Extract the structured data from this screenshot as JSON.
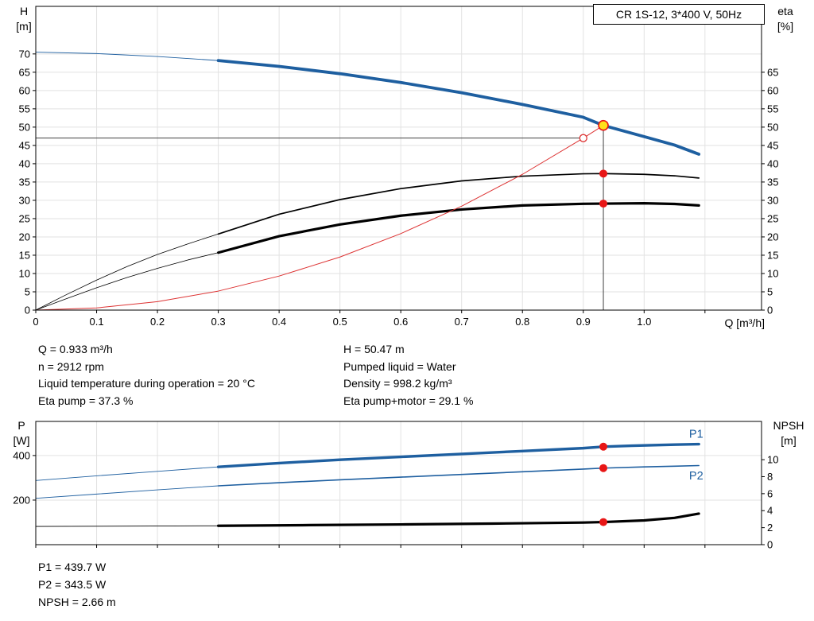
{
  "report": {
    "title": "CR 1S-12, 3*400 V, 50Hz"
  },
  "info_top": {
    "left": [
      "Q = 0.933 m³/h",
      "n = 2912 rpm",
      "Liquid temperature during operation = 20 °C",
      "Eta pump = 37.3 %"
    ],
    "right": [
      "H = 50.47 m",
      "Pumped liquid = Water",
      "Density = 998.2 kg/m³",
      "Eta pump+motor = 29.1 %"
    ]
  },
  "info_bottom": {
    "lines": [
      "P1 = 439.7 W",
      "P2 = 343.5 W",
      "NPSH = 2.66 m"
    ]
  },
  "colors": {
    "curve_blue": "#1e5fa0",
    "curve_black": "#000000",
    "system_red": "#dd3333",
    "marker_red": "#e81616",
    "duty_yellow": "#ffe11a",
    "grid": "#e2e2e2"
  },
  "chart_data": [
    {
      "type": "line",
      "title": "CR 1S-12, 3*400 V, 50Hz",
      "x_label": "Q [m³/h]",
      "y_left_label": [
        "H",
        "[m]"
      ],
      "y_right_label": [
        "eta",
        "[%]"
      ],
      "x_range": [
        0,
        1.193
      ],
      "y_left_range": [
        0,
        83
      ],
      "y_right_range": [
        0,
        83
      ],
      "x_ticks": [
        0,
        0.1,
        0.2,
        0.3,
        0.4,
        0.5,
        0.6,
        0.7,
        0.8,
        0.9,
        1.0,
        1.1
      ],
      "x_tick_labels": [
        "0",
        "0.1",
        "0.2",
        "0.3",
        "0.4",
        "0.5",
        "0.6",
        "0.7",
        "0.8",
        "0.9",
        "1.0",
        ""
      ],
      "y_left_ticks": [
        0,
        5,
        10,
        15,
        20,
        25,
        30,
        35,
        40,
        45,
        50,
        55,
        60,
        65,
        70
      ],
      "y_right_ticks": [
        0,
        5,
        10,
        15,
        20,
        25,
        30,
        35,
        40,
        45,
        50,
        55,
        60,
        65
      ],
      "grid_x_values": [
        0.1,
        0.2,
        0.3,
        0.4,
        0.5,
        0.6,
        0.7,
        0.8,
        0.9,
        1.0,
        1.1
      ],
      "grid_y_values": [
        5,
        10,
        15,
        20,
        25,
        30,
        35,
        40,
        45,
        50,
        55,
        60,
        65,
        70
      ],
      "grid_color": "#e2e2e2",
      "duty_point": {
        "Q": 0.933,
        "H": 50.47,
        "eta_pump": 37.3,
        "eta_pump_motor": 29.1
      },
      "ref_lines": [
        {
          "id": "duty-h-line",
          "orient": "h",
          "value": 47,
          "from": 0,
          "to": 0.9,
          "color": "#404040",
          "width": 1
        },
        {
          "id": "duty-v-line",
          "orient": "v",
          "value": 0.933,
          "from": 0,
          "to": 50.47,
          "color": "#404040",
          "width": 1
        }
      ],
      "series": [
        {
          "id": "h-curve-thin",
          "name": "H (low-flow extension)",
          "axis": "left",
          "color": "#1e5fa0",
          "width": 0.9,
          "points": [
            [
              0,
              70.5
            ],
            [
              0.1,
              70.1
            ],
            [
              0.2,
              69.3
            ],
            [
              0.3,
              68.2
            ]
          ]
        },
        {
          "id": "h-curve",
          "name": "H",
          "axis": "left",
          "color": "#1e5fa0",
          "width": 3.8,
          "points": [
            [
              0.3,
              68.2
            ],
            [
              0.4,
              66.6
            ],
            [
              0.5,
              64.6
            ],
            [
              0.6,
              62.2
            ],
            [
              0.7,
              59.4
            ],
            [
              0.8,
              56.2
            ],
            [
              0.9,
              52.7
            ],
            [
              0.933,
              50.47
            ],
            [
              1.0,
              47.4
            ],
            [
              1.05,
              45.1
            ],
            [
              1.09,
              42.6
            ]
          ]
        },
        {
          "id": "eta-pump-thin",
          "name": "Eta pump (low-flow extension)",
          "axis": "right",
          "color": "#000000",
          "width": 0.8,
          "points": [
            [
              0,
              0
            ],
            [
              0.05,
              4.2
            ],
            [
              0.1,
              8.2
            ],
            [
              0.15,
              11.9
            ],
            [
              0.2,
              15.2
            ],
            [
              0.25,
              18.1
            ],
            [
              0.3,
              20.8
            ]
          ]
        },
        {
          "id": "eta-pump",
          "name": "Eta pump",
          "axis": "right",
          "color": "#000000",
          "width": 1.7,
          "points": [
            [
              0.3,
              20.8
            ],
            [
              0.4,
              26.2
            ],
            [
              0.5,
              30.2
            ],
            [
              0.6,
              33.2
            ],
            [
              0.7,
              35.3
            ],
            [
              0.8,
              36.6
            ],
            [
              0.9,
              37.25
            ],
            [
              0.933,
              37.3
            ],
            [
              1.0,
              37.1
            ],
            [
              1.05,
              36.7
            ],
            [
              1.09,
              36.1
            ]
          ]
        },
        {
          "id": "eta-pump-motor-thin",
          "name": "Eta pump+motor (low-flow extension)",
          "axis": "right",
          "color": "#000000",
          "width": 0.8,
          "points": [
            [
              0,
              0
            ],
            [
              0.05,
              3.1
            ],
            [
              0.1,
              6.1
            ],
            [
              0.15,
              8.9
            ],
            [
              0.2,
              11.4
            ],
            [
              0.25,
              13.7
            ],
            [
              0.3,
              15.7
            ]
          ]
        },
        {
          "id": "eta-pump-motor",
          "name": "Eta pump+motor",
          "axis": "right",
          "color": "#000000",
          "width": 3.2,
          "points": [
            [
              0.3,
              15.7
            ],
            [
              0.4,
              20.2
            ],
            [
              0.5,
              23.4
            ],
            [
              0.6,
              25.8
            ],
            [
              0.7,
              27.5
            ],
            [
              0.8,
              28.6
            ],
            [
              0.9,
              29.05
            ],
            [
              0.933,
              29.1
            ],
            [
              1.0,
              29.2
            ],
            [
              1.05,
              29.0
            ],
            [
              1.09,
              28.6
            ]
          ]
        },
        {
          "id": "system-curve",
          "name": "System curve",
          "axis": "left",
          "color": "#dd3333",
          "width": 1,
          "points": [
            [
              0,
              0
            ],
            [
              0.1,
              0.6
            ],
            [
              0.2,
              2.3
            ],
            [
              0.3,
              5.2
            ],
            [
              0.4,
              9.3
            ],
            [
              0.5,
              14.5
            ],
            [
              0.6,
              20.9
            ],
            [
              0.7,
              28.4
            ],
            [
              0.8,
              37.1
            ],
            [
              0.9,
              47.0
            ],
            [
              0.933,
              50.47
            ]
          ]
        }
      ],
      "markers": [
        {
          "id": "requested-duty-marker",
          "x": 0.9,
          "y": 47,
          "axis": "left",
          "r": 4.5,
          "fill": "#ffffff",
          "stroke": "#dd3333",
          "stroke_width": 1.3
        },
        {
          "id": "eta-pump-duty-dot",
          "x": 0.933,
          "y": 37.3,
          "axis": "right",
          "r": 5,
          "fill": "#e81616"
        },
        {
          "id": "eta-pump-motor-duty-dot",
          "x": 0.933,
          "y": 29.1,
          "axis": "right",
          "r": 5,
          "fill": "#e81616"
        },
        {
          "id": "duty-point-marker",
          "x": 0.933,
          "y": 50.47,
          "axis": "left",
          "r": 6,
          "fill": "#ffe11a",
          "stroke": "#e81616",
          "stroke_width": 1.6
        }
      ],
      "annotations": []
    },
    {
      "type": "line",
      "y_left_label": [
        "P",
        "[W]"
      ],
      "y_right_label": [
        "NPSH",
        "[m]"
      ],
      "x_range": [
        0,
        1.193
      ],
      "y_left_range": [
        0,
        553
      ],
      "y_right_range": [
        0,
        14.5
      ],
      "x_ticks": [
        0,
        0.1,
        0.2,
        0.3,
        0.4,
        0.5,
        0.6,
        0.7,
        0.8,
        0.9,
        1.0,
        1.1
      ],
      "x_tick_labels": [],
      "y_left_ticks": [
        200,
        400
      ],
      "y_right_ticks": [
        0,
        2,
        4,
        6,
        8,
        10
      ],
      "grid_x_values": [
        0.1,
        0.2,
        0.3,
        0.4,
        0.5,
        0.6,
        0.7,
        0.8,
        0.9,
        1.0,
        1.1
      ],
      "grid_y_values": [
        200,
        400
      ],
      "grid_color": "#e2e2e2",
      "duty_point": {
        "Q": 0.933,
        "P1": 439.7,
        "P2": 343.5,
        "NPSH": 2.66
      },
      "ref_lines": [],
      "series": [
        {
          "id": "p1-curve-thin",
          "name": "P1 (low-flow extension)",
          "axis": "left",
          "color": "#1e5fa0",
          "width": 0.9,
          "points": [
            [
              0,
              288
            ],
            [
              0.1,
              309
            ],
            [
              0.2,
              329
            ],
            [
              0.3,
              349
            ]
          ]
        },
        {
          "id": "p1-curve",
          "name": "P1",
          "axis": "left",
          "color": "#1e5fa0",
          "width": 3.4,
          "points": [
            [
              0.3,
              349
            ],
            [
              0.4,
              366
            ],
            [
              0.5,
              381
            ],
            [
              0.6,
              394
            ],
            [
              0.7,
              407
            ],
            [
              0.8,
              420
            ],
            [
              0.9,
              433
            ],
            [
              0.933,
              439.7
            ],
            [
              0.98,
              444
            ],
            [
              1.05,
              449
            ],
            [
              1.09,
              451
            ]
          ]
        },
        {
          "id": "p2-curve-thin",
          "name": "P2 (low-flow extension)",
          "axis": "left",
          "color": "#1e5fa0",
          "width": 0.9,
          "points": [
            [
              0,
              208
            ],
            [
              0.1,
              227
            ],
            [
              0.2,
              246
            ],
            [
              0.3,
              264
            ]
          ]
        },
        {
          "id": "p2-curve",
          "name": "P2",
          "axis": "left",
          "color": "#1e5fa0",
          "width": 1.6,
          "points": [
            [
              0.3,
              264
            ],
            [
              0.4,
              278
            ],
            [
              0.5,
              291
            ],
            [
              0.6,
              303
            ],
            [
              0.7,
              315
            ],
            [
              0.8,
              327
            ],
            [
              0.9,
              339
            ],
            [
              0.933,
              343.5
            ],
            [
              1.0,
              349
            ],
            [
              1.05,
              352
            ],
            [
              1.09,
              355
            ]
          ]
        },
        {
          "id": "npsh-curve-thin",
          "name": "NPSH (low-flow extension)",
          "axis": "right",
          "color": "#000000",
          "width": 0.9,
          "points": [
            [
              0,
              2.15
            ],
            [
              0.15,
              2.18
            ],
            [
              0.3,
              2.22
            ]
          ]
        },
        {
          "id": "npsh-curve",
          "name": "NPSH",
          "axis": "right",
          "color": "#000000",
          "width": 3.2,
          "points": [
            [
              0.3,
              2.22
            ],
            [
              0.45,
              2.3
            ],
            [
              0.6,
              2.38
            ],
            [
              0.75,
              2.48
            ],
            [
              0.9,
              2.6
            ],
            [
              0.933,
              2.66
            ],
            [
              1.0,
              2.85
            ],
            [
              1.05,
              3.15
            ],
            [
              1.09,
              3.65
            ]
          ]
        }
      ],
      "markers": [
        {
          "id": "p1-duty-dot",
          "x": 0.933,
          "y": 439.7,
          "axis": "left",
          "r": 5,
          "fill": "#e81616"
        },
        {
          "id": "p2-duty-dot",
          "x": 0.933,
          "y": 343.5,
          "axis": "left",
          "r": 5,
          "fill": "#e81616"
        },
        {
          "id": "npsh-duty-dot",
          "x": 0.933,
          "y": 2.66,
          "axis": "right",
          "r": 5,
          "fill": "#e81616"
        }
      ],
      "annotations": [
        {
          "id": "p1-curve-label",
          "text": "P1",
          "x": 1.074,
          "y": 480,
          "axis": "left",
          "color": "#1e5fa0"
        },
        {
          "id": "p2-curve-label",
          "text": "P2",
          "x": 1.074,
          "y": 292,
          "axis": "left",
          "color": "#1e5fa0"
        }
      ]
    }
  ]
}
